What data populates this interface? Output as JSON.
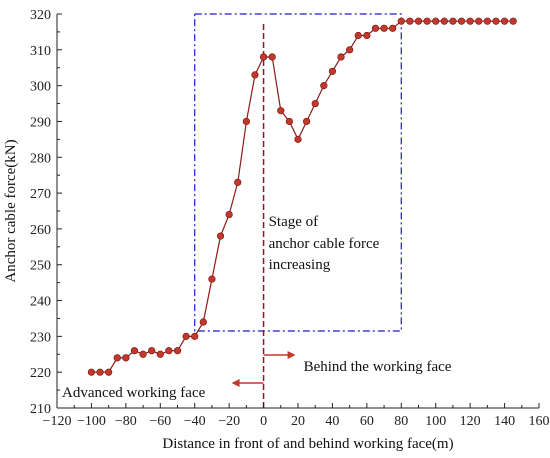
{
  "chart_data": {
    "type": "line",
    "xlabel": "Distance in front of and behind working face(m)",
    "ylabel": "Anchor cable force(kN)",
    "xlim": [
      -120,
      160
    ],
    "ylim": [
      210,
      320
    ],
    "x_ticks": [
      -120,
      -100,
      -80,
      -60,
      -40,
      -20,
      0,
      20,
      40,
      60,
      80,
      100,
      120,
      140,
      160
    ],
    "x_tick_labels": [
      "−120",
      "−100",
      "−80",
      "−60",
      "−40",
      "−20",
      "0",
      "20",
      "40",
      "60",
      "80",
      "100",
      "120",
      "140",
      "160"
    ],
    "y_ticks": [
      210,
      220,
      230,
      240,
      250,
      260,
      270,
      280,
      290,
      300,
      310,
      320
    ],
    "y_tick_labels": [
      "210",
      "220",
      "230",
      "240",
      "250",
      "260",
      "270",
      "280",
      "290",
      "300",
      "310",
      "320"
    ],
    "grid": false,
    "line_color": "#8b1a1a",
    "marker_color": "#c0392b",
    "series": [
      {
        "x": [
          -100,
          -95,
          -90,
          -85,
          -80,
          -75,
          -70,
          -65,
          -60,
          -55,
          -50,
          -45,
          -40,
          -35,
          -30,
          -25,
          -20,
          -15,
          -10,
          -5,
          0,
          5,
          10,
          15,
          20,
          25,
          30,
          35,
          40,
          45,
          50,
          55,
          60,
          65,
          70,
          75,
          80,
          85,
          90,
          95,
          100,
          105,
          110,
          115,
          120,
          125,
          130,
          135,
          140,
          145
        ],
        "values": [
          220,
          220,
          220,
          224,
          224,
          226,
          225,
          226,
          225,
          226,
          226,
          230,
          230,
          234,
          246,
          258,
          264,
          273,
          290,
          303,
          308,
          308,
          293,
          290,
          285,
          290,
          295,
          300,
          304,
          308,
          310,
          314,
          314,
          316,
          316,
          316,
          318,
          318,
          318,
          318,
          318,
          318,
          318,
          318,
          318,
          318,
          318,
          318,
          318,
          318
        ]
      }
    ],
    "stage_box": {
      "x": [
        -40,
        80
      ],
      "y": [
        231.5,
        320
      ],
      "color": "#1a1acc"
    },
    "working_face_line": {
      "x": 0,
      "color": "#8b1a1a"
    },
    "annotations": {
      "stage_lines": [
        "Stage of",
        "anchor cable force",
        "increasing"
      ],
      "behind": "Behind the working face",
      "advanced": "Advanced working face"
    }
  }
}
